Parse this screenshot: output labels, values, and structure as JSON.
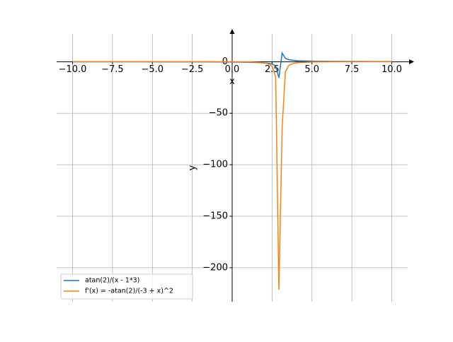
{
  "chart_data": {
    "type": "line",
    "x": [
      -10,
      -7.9798,
      -5.9596,
      -3.9394,
      -1.9192,
      0.101,
      1.1111,
      1.7172,
      2.1212,
      2.3232,
      2.5253,
      2.7273,
      2.9293,
      3.1313,
      3.3333,
      3.5354,
      3.7374,
      4.1414,
      5.1515,
      6.1616,
      8.1818,
      10
    ],
    "series": [
      {
        "name": "atan(2)/(x - 1*3)",
        "color": "#1f77b4",
        "values": [
          -0.0852,
          -0.1008,
          -0.1236,
          -0.1595,
          -0.2251,
          -0.3819,
          -0.5861,
          -0.8631,
          -1.2598,
          -1.6359,
          -2.3323,
          -4.0599,
          -15.66,
          8.432,
          3.3215,
          2.0679,
          1.5014,
          0.97,
          0.5146,
          0.3502,
          0.2137,
          0.1582
        ]
      },
      {
        "name": "f'(x) = -atan(2)/(-3 + x)^2",
        "color": "#ff7f0e",
        "values": [
          -0.00655,
          -0.00918,
          -0.01379,
          -0.02299,
          -0.04575,
          -0.1317,
          -0.3103,
          -0.6728,
          -1.4336,
          -2.4171,
          -4.913,
          -14.887,
          -221.5,
          -64.22,
          -9.964,
          -3.862,
          -2.036,
          -0.8498,
          -0.2392,
          -0.1108,
          -0.04123,
          -0.02259
        ]
      }
    ],
    "x_label": "x",
    "y_label": "y",
    "xlim": [
      -11,
      11
    ],
    "ylim": [
      -233,
      27
    ],
    "xticks": [
      {
        "value": -10,
        "label": "−10.0"
      },
      {
        "value": -7.5,
        "label": "−7.5"
      },
      {
        "value": -5,
        "label": "−5.0"
      },
      {
        "value": -2.5,
        "label": "−2.5"
      },
      {
        "value": 0,
        "label": "0.0"
      },
      {
        "value": 2.5,
        "label": "2.5"
      },
      {
        "value": 5,
        "label": "5.0"
      },
      {
        "value": 7.5,
        "label": "7.5"
      },
      {
        "value": 10,
        "label": "10.0"
      }
    ],
    "yticks": [
      {
        "value": -200,
        "label": "−200"
      },
      {
        "value": -150,
        "label": "−150"
      },
      {
        "value": -100,
        "label": "−100"
      },
      {
        "value": -50,
        "label": "−50"
      },
      0
    ],
    "grid": true,
    "legend": "lower left"
  }
}
